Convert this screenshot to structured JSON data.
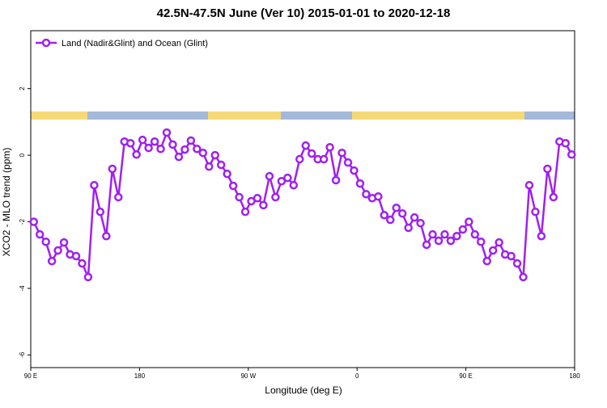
{
  "chart_data": {
    "type": "line",
    "title": "42.5N-47.5N June (Ver 10)   2015-01-01 to 2020-12-18",
    "x_label": "Longitude (deg E)",
    "y_label": "XCO2 - MLO trend (ppm)",
    "x": [
      92.5,
      97.5,
      102.5,
      107.5,
      112.5,
      117.5,
      122.5,
      127.5,
      132.5,
      137.5,
      142.5,
      147.5,
      152.5,
      157.5,
      162.5,
      167.5,
      172.5,
      177.5,
      182.5,
      187.5,
      192.5,
      197.5,
      202.5,
      207.5,
      212.5,
      217.5,
      222.5,
      227.5,
      232.5,
      237.5,
      242.5,
      247.5,
      252.5,
      257.5,
      262.5,
      267.5,
      272.5,
      277.5,
      282.5,
      287.5,
      292.5,
      297.5,
      302.5,
      307.5,
      312.5,
      317.5,
      322.5,
      327.5,
      332.5,
      337.5,
      342.5,
      347.5,
      352.5,
      357.5,
      362.5,
      367.5,
      372.5,
      377.5,
      382.5,
      387.5,
      392.5,
      397.5,
      402.5,
      407.5,
      412.5,
      417.5,
      422.5,
      427.5,
      432.5,
      437.5,
      442.5,
      447.5,
      452.5,
      457.5,
      462.5,
      467.5,
      472.5,
      477.5,
      482.5,
      487.5,
      492.5,
      497.5,
      502.5,
      507.5,
      512.5,
      517.5,
      522.5,
      527.5,
      532.5,
      537.5
    ],
    "series": [
      {
        "name": "Land (Nadir&Glint) and Ocean (Glint)",
        "color": "#a020f0",
        "values": [
          -2.0,
          -2.38,
          -2.6,
          -3.18,
          -2.86,
          -2.62,
          -2.98,
          -3.03,
          -3.25,
          -3.66,
          -0.9,
          -1.7,
          -2.43,
          -0.41,
          -1.26,
          0.41,
          0.36,
          0.02,
          0.46,
          0.22,
          0.41,
          0.19,
          0.68,
          0.32,
          -0.05,
          0.17,
          0.44,
          0.19,
          0.07,
          -0.34,
          0.0,
          -0.29,
          -0.56,
          -0.92,
          -1.26,
          -1.7,
          -1.38,
          -1.29,
          -1.5,
          -0.63,
          -1.26,
          -0.78,
          -0.68,
          -0.9,
          -0.12,
          0.29,
          0.05,
          -0.12,
          -0.12,
          0.24,
          -0.75,
          0.07,
          -0.22,
          -0.46,
          -0.85,
          -1.17,
          -1.29,
          -1.24,
          -1.8,
          -1.94,
          -1.58,
          -1.75,
          -2.18,
          -1.87,
          -2.04,
          -2.69,
          -2.38,
          -2.57,
          -2.38,
          -2.57,
          -2.43,
          -2.23,
          -2.0,
          -2.38,
          -2.6,
          -3.18,
          -2.86,
          -2.62,
          -2.98,
          -3.03,
          -3.25,
          -3.66,
          -0.9,
          -1.7,
          -2.43,
          -0.41,
          -1.26,
          0.41,
          0.36,
          0.02
        ]
      }
    ],
    "xlim": [
      90,
      540
    ],
    "xticks": [
      {
        "value": 90,
        "label": "90 E"
      },
      180,
      {
        "value": 270,
        "label": "90 W"
      },
      {
        "value": 360,
        "label": "0"
      },
      {
        "value": 450,
        "label": "90 E"
      },
      {
        "value": 540,
        "label": "180"
      }
    ],
    "ylim": [
      -6.38,
      3.74
    ],
    "yticks": [
      -6,
      -4,
      -2,
      0,
      2
    ],
    "legend": "top-left"
  }
}
